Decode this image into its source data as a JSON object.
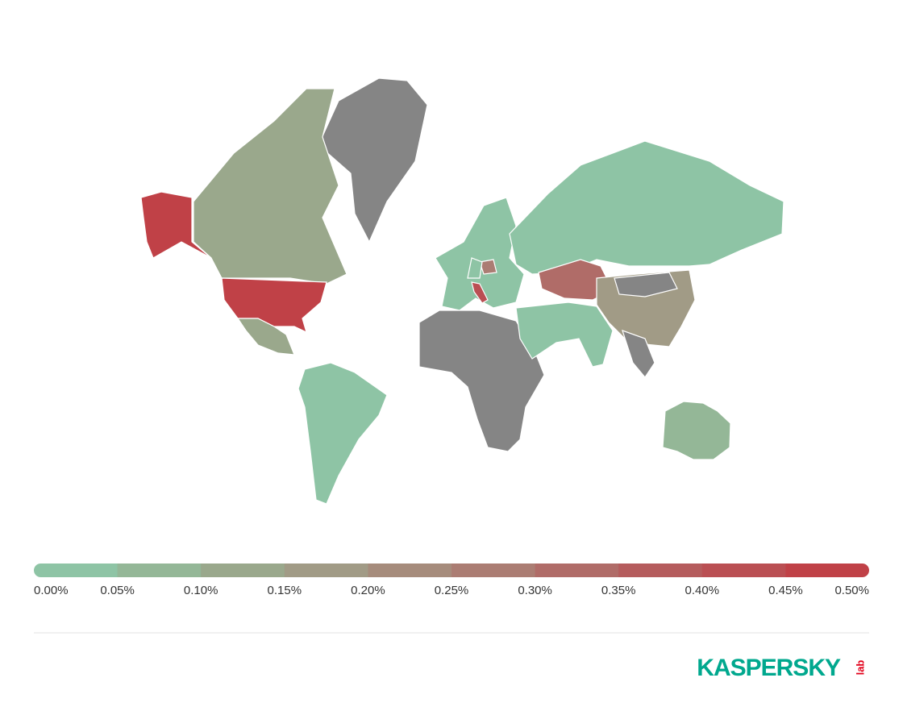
{
  "chart_data": {
    "type": "choropleth",
    "no_data_color": "#858585",
    "scale_colors": [
      "#8ec4a5",
      "#94b797",
      "#9aa88c",
      "#a19b86",
      "#a68c7c",
      "#ab7d73",
      "#b06c68",
      "#b55c5d",
      "#ba4f53",
      "#c04147"
    ],
    "xlim": [
      0,
      0.5
    ],
    "xticks": [
      {
        "value": 0,
        "label": "0.00%"
      },
      {
        "value": 0.05,
        "label": "0.05%"
      },
      {
        "value": 0.1,
        "label": "0.10%"
      },
      {
        "value": 0.15,
        "label": "0.15%"
      },
      {
        "value": 0.2,
        "label": "0.20%"
      },
      {
        "value": 0.25,
        "label": "0.25%"
      },
      {
        "value": 0.3,
        "label": "0.30%"
      },
      {
        "value": 0.35,
        "label": "0.35%"
      },
      {
        "value": 0.4,
        "label": "0.40%"
      },
      {
        "value": 0.45,
        "label": "0.45%"
      },
      {
        "value": 0.5,
        "label": "0.50%"
      }
    ],
    "values": [
      null,
      0.1,
      0.48,
      0.48,
      0.12,
      0.03,
      null,
      0.04,
      0.02,
      0.3,
      0.18,
      null,
      0.03,
      0.09,
      0.4,
      0.25,
      null,
      0.02
    ],
    "logo": "KASPERSKY",
    "logo_sub": "lab"
  }
}
